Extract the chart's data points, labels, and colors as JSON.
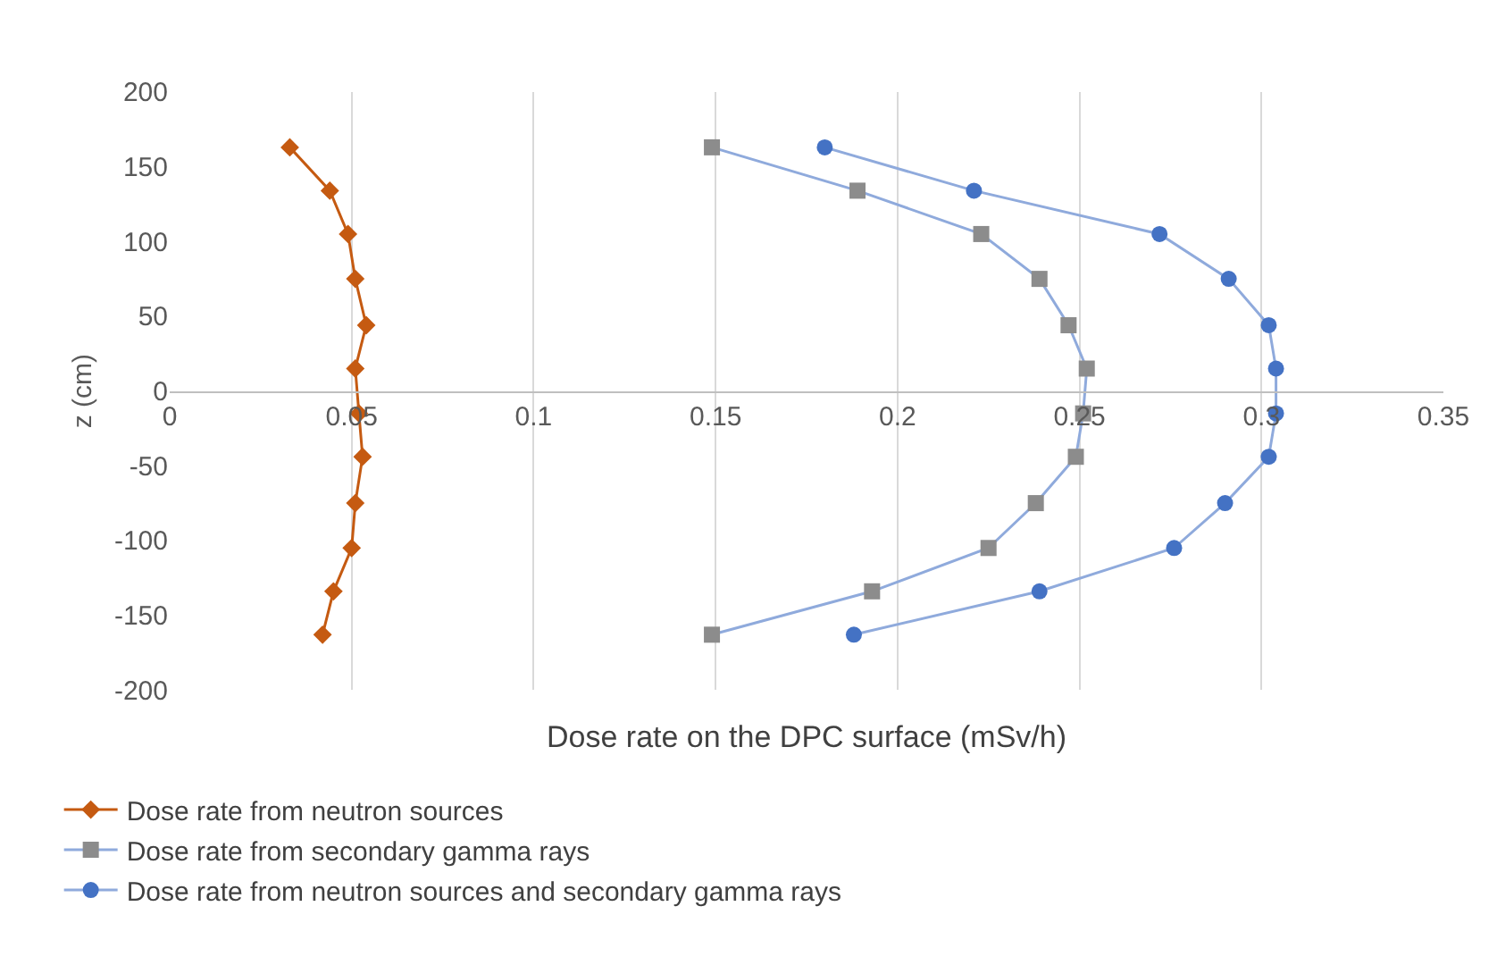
{
  "chart_data": {
    "type": "line",
    "xlabel": "Dose rate on the DPC surface (mSv/h)",
    "ylabel": "z (cm)",
    "xlim": [
      0,
      0.35
    ],
    "xticks": [
      0,
      0.05,
      0.1,
      0.15,
      0.2,
      0.25,
      0.3,
      0.35
    ],
    "ylim": [
      -200,
      200
    ],
    "yticks": [
      -200,
      -150,
      -100,
      -50,
      0,
      50,
      100,
      150,
      200
    ],
    "grid": "x",
    "legend": "bottom",
    "line_style": "solid",
    "series": [
      {
        "name": "Dose rate from neutron sources",
        "color": "#c55a11",
        "marker": "diamond",
        "x": [
          0.033,
          0.044,
          0.049,
          0.051,
          0.054,
          0.051,
          0.052,
          0.053,
          0.051,
          0.05,
          0.045,
          0.042
        ],
        "values": [
          163,
          134,
          105,
          75,
          44,
          15,
          -15,
          -44,
          -75,
          -105,
          -134,
          -163
        ]
      },
      {
        "name": "Dose rate from secondary gamma rays",
        "color": "#8faadc",
        "colors": [
          "#8c8c8c",
          "#8c8c8c",
          "#8c8c8c",
          "#8c8c8c",
          "#8c8c8c",
          "#8c8c8c",
          "#8c8c8c",
          "#8c8c8c",
          "#8c8c8c",
          "#8c8c8c",
          "#8c8c8c",
          "#8c8c8c"
        ],
        "marker": "square",
        "x": [
          0.149,
          0.189,
          0.223,
          0.239,
          0.247,
          0.252,
          0.251,
          0.249,
          0.238,
          0.225,
          0.193,
          0.149
        ],
        "values": [
          163,
          134,
          105,
          75,
          44,
          15,
          -15,
          -44,
          -75,
          -105,
          -134,
          -163
        ]
      },
      {
        "name": "Dose rate from neutron sources and secondary gamma rays",
        "color": "#8faadc",
        "colors": [
          "#4472c4",
          "#4472c4",
          "#4472c4",
          "#4472c4",
          "#4472c4",
          "#4472c4",
          "#4472c4",
          "#4472c4",
          "#4472c4",
          "#4472c4",
          "#4472c4",
          "#4472c4"
        ],
        "marker": "circle",
        "x": [
          0.18,
          0.221,
          0.272,
          0.291,
          0.302,
          0.304,
          0.304,
          0.302,
          0.29,
          0.276,
          0.239,
          0.188
        ],
        "values": [
          163,
          134,
          105,
          75,
          44,
          15,
          -15,
          -44,
          -75,
          -105,
          -134,
          -163
        ]
      }
    ]
  }
}
